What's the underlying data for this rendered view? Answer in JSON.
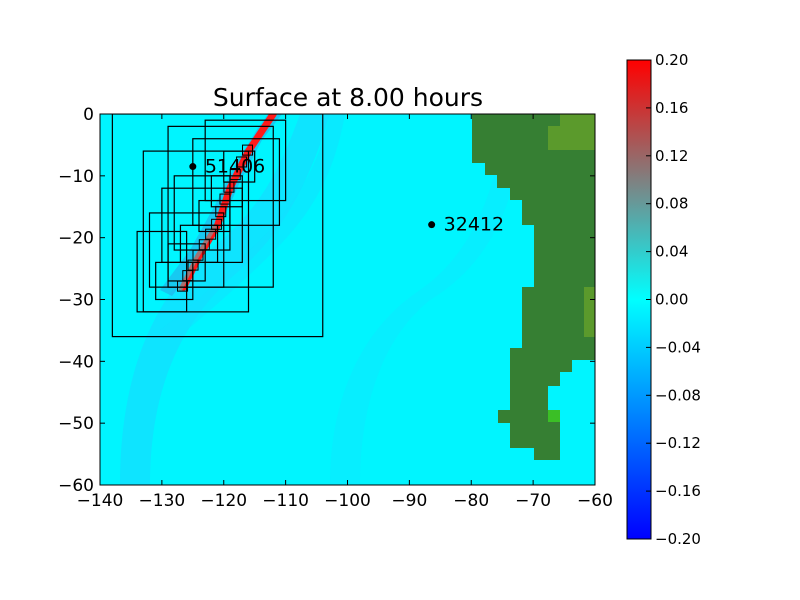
{
  "chart_data": {
    "type": "heatmap",
    "title": "Surface at 8.00 hours",
    "xlabel": "",
    "ylabel": "",
    "xlim": [
      -140,
      -60
    ],
    "ylim": [
      -60,
      0
    ],
    "x_ticks": [
      -140,
      -130,
      -120,
      -110,
      -100,
      -90,
      -80,
      -70,
      -60
    ],
    "y_ticks": [
      0,
      -10,
      -20,
      -30,
      -40,
      -50,
      -60
    ],
    "x_tick_labels": [
      "−140",
      "−130",
      "−120",
      "−110",
      "−100",
      "−90",
      "−80",
      "−70",
      "−60"
    ],
    "y_tick_labels": [
      "0",
      "−10",
      "−20",
      "−30",
      "−40",
      "−50",
      "−60"
    ],
    "colorbar": {
      "vmin": -0.2,
      "vmax": 0.2,
      "ticks": [
        0.2,
        0.16,
        0.12,
        0.08,
        0.04,
        0.0,
        -0.04,
        -0.08,
        -0.12,
        -0.16,
        -0.2
      ],
      "tick_labels": [
        "0.20",
        "0.16",
        "0.12",
        "0.08",
        "0.04",
        "0.00",
        "−0.04",
        "−0.08",
        "−0.12",
        "−0.16",
        "−0.20"
      ],
      "colors": [
        "#0000ff",
        "#00ffff",
        "#808080",
        "#ff0000"
      ]
    },
    "wave_front": [
      [
        -126.5,
        -28
      ],
      [
        -124,
        -23
      ],
      [
        -121,
        -18
      ],
      [
        -119,
        -12
      ],
      [
        -116,
        -6
      ],
      [
        -112,
        0
      ]
    ],
    "gauges": [
      {
        "label": "51406",
        "x": -125.0,
        "y": -8.5
      },
      {
        "label": "32412",
        "x": -86.4,
        "y": -17.9
      }
    ],
    "refinement_boxes": [
      [
        -138,
        -104,
        -36,
        0
      ],
      [
        -133,
        -116,
        -32,
        -6
      ],
      [
        -129,
        -112,
        -28,
        -2
      ],
      [
        -134,
        -126,
        -32,
        -19
      ],
      [
        -132,
        -120,
        -28,
        -16
      ],
      [
        -130,
        -117,
        -24,
        -12
      ],
      [
        -125,
        -111,
        -18,
        -4
      ],
      [
        -123,
        -110,
        -14,
        -1
      ],
      [
        -128,
        -119,
        -22,
        -10
      ],
      [
        -131,
        -125,
        -30,
        -24
      ],
      [
        -129,
        -123,
        -27,
        -21
      ],
      [
        -127,
        -121,
        -24,
        -18
      ],
      [
        -124,
        -119,
        -19,
        -14
      ],
      [
        -122,
        -117,
        -15,
        -10
      ],
      [
        -120,
        -115,
        -11,
        -6
      ]
    ],
    "land_color": "#367f33",
    "ocean_color": "#00f5ff"
  }
}
